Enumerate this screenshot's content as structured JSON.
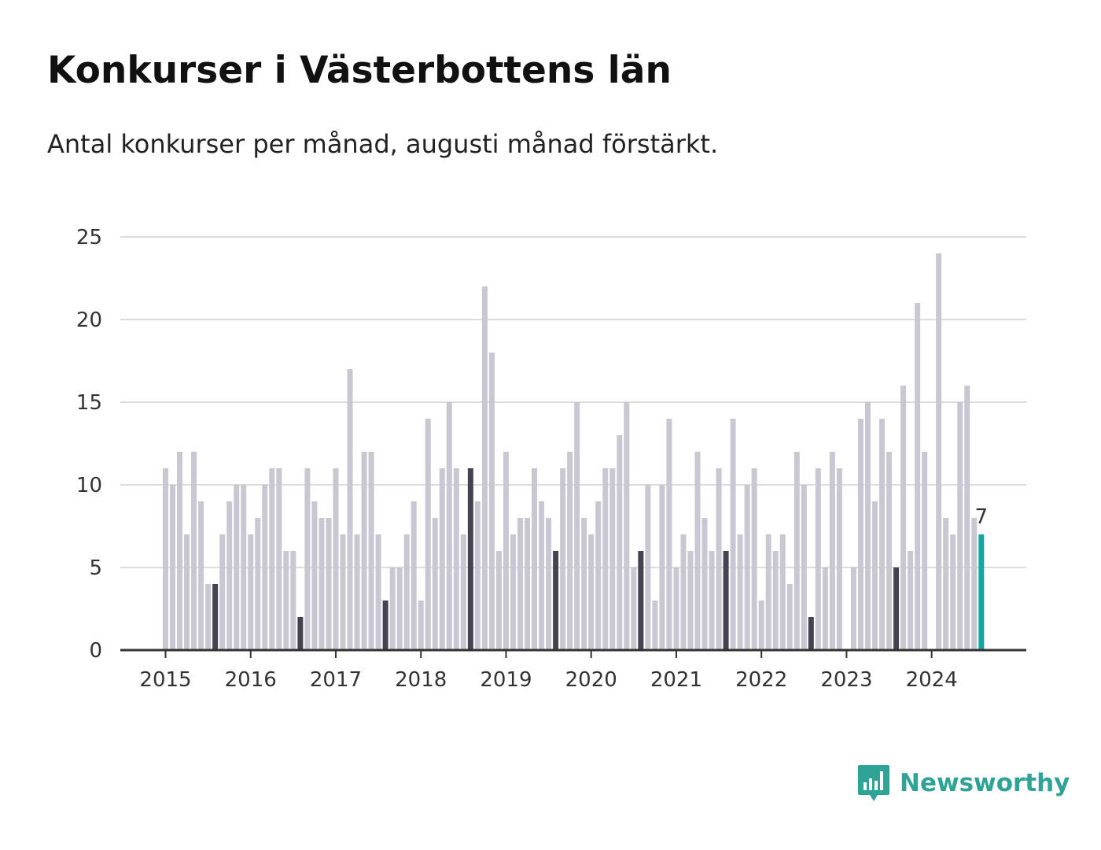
{
  "title": "Konkurser i Västerbottens län",
  "subtitle": "Antal konkurser per månad, augusti månad förstärkt.",
  "brand": {
    "name": "Newsworthy",
    "icon": "newsworthy-logo-icon",
    "color": "#2fa396"
  },
  "colors": {
    "bar": "#c9c8d2",
    "highlight": "#454352",
    "latest": "#13a89e",
    "grid": "#dddddd",
    "axis": "#333333"
  },
  "chart_data": {
    "type": "bar",
    "title": "Konkurser i Västerbottens län",
    "subtitle": "Antal konkurser per månad, augusti månad förstärkt.",
    "xlabel": "",
    "ylabel": "",
    "ylim": [
      0,
      25
    ],
    "yticks": [
      0,
      5,
      10,
      15,
      20,
      25
    ],
    "xticks": [
      "2015",
      "2016",
      "2017",
      "2018",
      "2019",
      "2020",
      "2021",
      "2022",
      "2023",
      "2024"
    ],
    "grid": true,
    "start": "2015-01",
    "end": "2024-08",
    "highlight_month": "augusti",
    "values": [
      11,
      10,
      12,
      7,
      12,
      9,
      4,
      4,
      7,
      9,
      10,
      10,
      7,
      8,
      10,
      11,
      11,
      6,
      6,
      2,
      11,
      9,
      8,
      8,
      11,
      7,
      17,
      7,
      12,
      12,
      7,
      3,
      5,
      5,
      7,
      9,
      3,
      14,
      8,
      11,
      15,
      11,
      7,
      11,
      9,
      22,
      18,
      6,
      12,
      7,
      8,
      8,
      11,
      9,
      8,
      6,
      11,
      12,
      15,
      8,
      7,
      9,
      11,
      11,
      13,
      15,
      5,
      6,
      10,
      3,
      10,
      14,
      5,
      7,
      6,
      12,
      8,
      6,
      11,
      6,
      14,
      7,
      10,
      11,
      3,
      7,
      6,
      7,
      4,
      12,
      10,
      2,
      11,
      5,
      12,
      11,
      0,
      5,
      14,
      15,
      9,
      14,
      12,
      5,
      16,
      6,
      21,
      12,
      0,
      24,
      8,
      7,
      15,
      16,
      8,
      7
    ],
    "annotation": {
      "label": "7",
      "month": "2024-08"
    }
  }
}
